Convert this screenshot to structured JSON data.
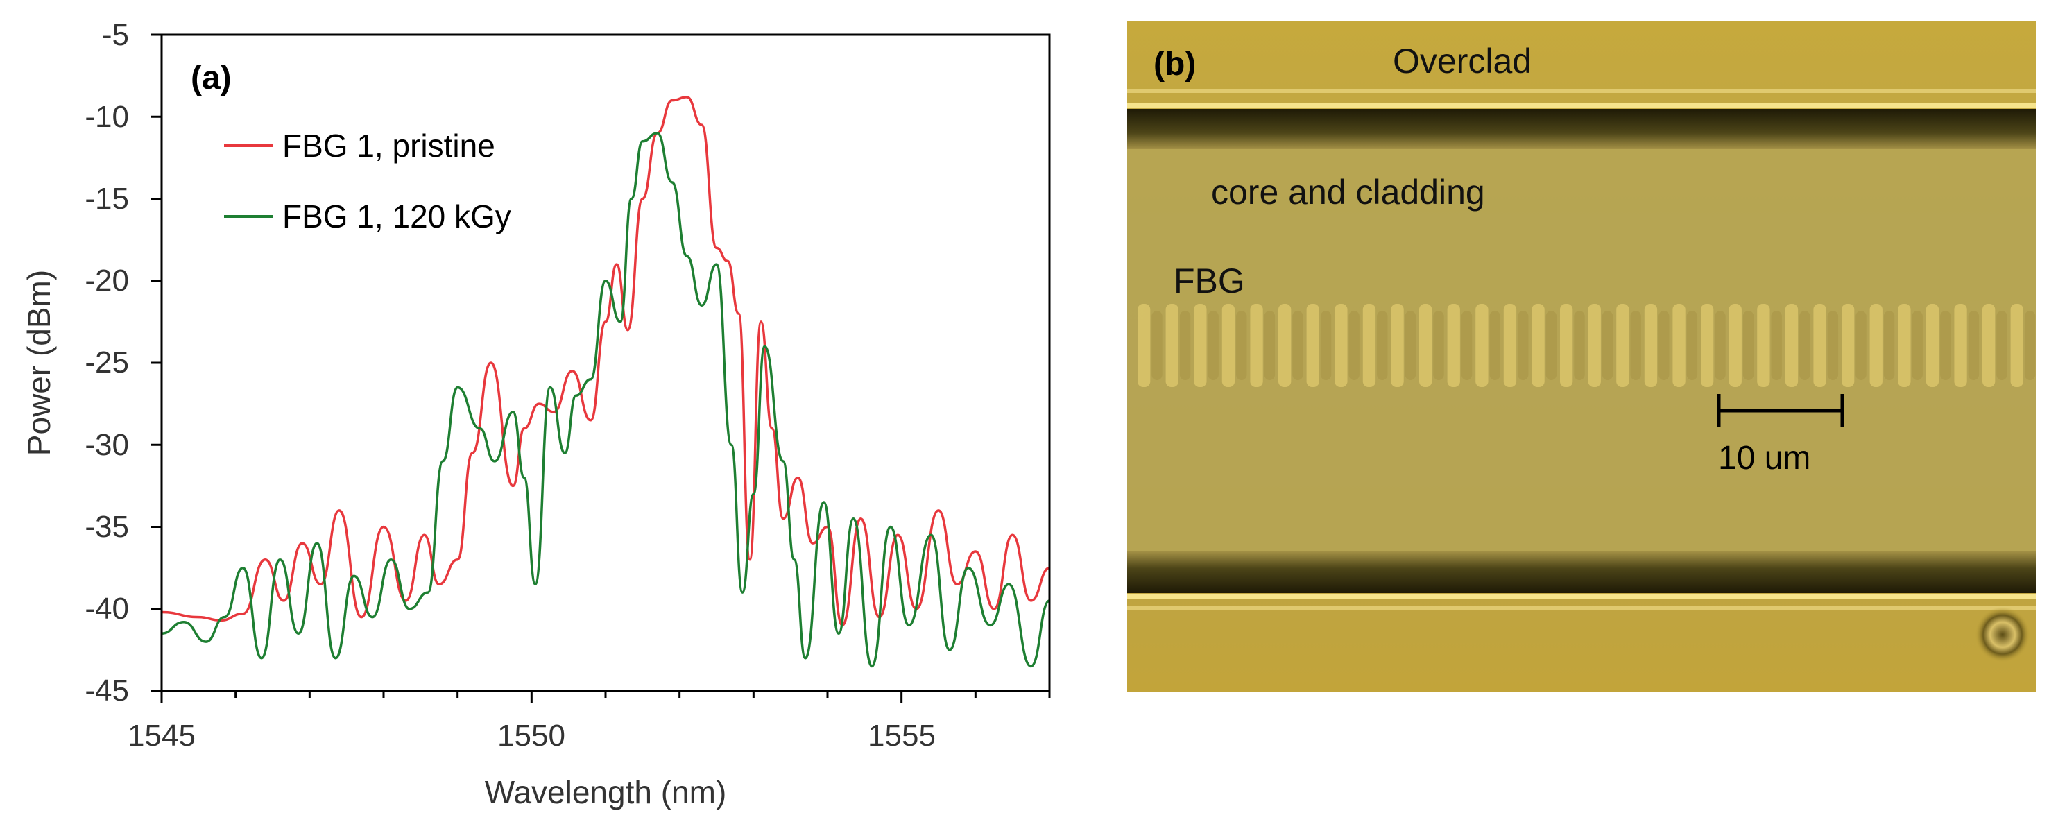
{
  "chart_data": {
    "type": "line",
    "panel_label": "(a)",
    "xlabel": "Wavelength (nm)",
    "ylabel": "Power (dBm)",
    "xlim": [
      1545,
      1557
    ],
    "ylim": [
      -45,
      -5
    ],
    "xticks": [
      1545,
      1550,
      1555
    ],
    "yticks": [
      -5,
      -10,
      -15,
      -20,
      -25,
      -30,
      -35,
      -40,
      -45
    ],
    "xtick_labels": [
      "1545",
      "1550",
      "1555"
    ],
    "ytick_labels": [
      "-5",
      "-10",
      "-15",
      "-20",
      "-25",
      "-30",
      "-35",
      "-40",
      "-45"
    ],
    "legend_position": "top-left",
    "series": [
      {
        "name": "FBG 1, pristine",
        "color": "#e8383d",
        "x": [
          1545.0,
          1545.5,
          1545.8,
          1546.1,
          1546.4,
          1546.65,
          1546.9,
          1547.15,
          1547.4,
          1547.7,
          1548.0,
          1548.3,
          1548.55,
          1548.75,
          1549.0,
          1549.2,
          1549.45,
          1549.75,
          1549.9,
          1550.1,
          1550.3,
          1550.55,
          1550.8,
          1551.0,
          1551.15,
          1551.3,
          1551.5,
          1551.7,
          1551.9,
          1552.1,
          1552.3,
          1552.5,
          1552.65,
          1552.8,
          1552.95,
          1553.1,
          1553.25,
          1553.4,
          1553.6,
          1553.8,
          1554.0,
          1554.2,
          1554.45,
          1554.7,
          1554.95,
          1555.2,
          1555.5,
          1555.75,
          1556.0,
          1556.25,
          1556.5,
          1556.75,
          1557.0
        ],
        "values": [
          -40.2,
          -40.5,
          -40.7,
          -40.3,
          -37.0,
          -39.5,
          -36.0,
          -38.5,
          -34.0,
          -40.5,
          -35.0,
          -39.5,
          -35.5,
          -38.5,
          -37.0,
          -30.5,
          -25.0,
          -32.5,
          -29.0,
          -27.5,
          -28.0,
          -25.5,
          -28.5,
          -22.5,
          -19.0,
          -23.0,
          -15.0,
          -11.0,
          -9.0,
          -8.8,
          -10.5,
          -18.0,
          -18.8,
          -22.0,
          -37.0,
          -22.5,
          -29.0,
          -34.5,
          -32.0,
          -36.0,
          -35.0,
          -41.0,
          -34.5,
          -40.5,
          -35.5,
          -40.0,
          -34.0,
          -38.5,
          -36.5,
          -40.0,
          -35.5,
          -39.5,
          -37.5
        ]
      },
      {
        "name": "FBG 1, 120 kGy",
        "color": "#1e7f32",
        "x": [
          1545.0,
          1545.3,
          1545.6,
          1545.85,
          1546.1,
          1546.35,
          1546.6,
          1546.85,
          1547.1,
          1547.35,
          1547.6,
          1547.85,
          1548.1,
          1548.35,
          1548.6,
          1548.8,
          1549.0,
          1549.3,
          1549.5,
          1549.75,
          1549.9,
          1550.05,
          1550.25,
          1550.45,
          1550.6,
          1550.8,
          1551.0,
          1551.2,
          1551.35,
          1551.5,
          1551.7,
          1551.9,
          1552.1,
          1552.3,
          1552.5,
          1552.7,
          1552.85,
          1553.0,
          1553.15,
          1553.4,
          1553.55,
          1553.7,
          1553.95,
          1554.15,
          1554.35,
          1554.6,
          1554.85,
          1555.1,
          1555.4,
          1555.65,
          1555.9,
          1556.2,
          1556.45,
          1556.75,
          1557.0
        ],
        "values": [
          -41.5,
          -40.8,
          -42.0,
          -40.5,
          -37.5,
          -43.0,
          -37.0,
          -41.5,
          -36.0,
          -43.0,
          -38.0,
          -40.5,
          -37.0,
          -40.0,
          -39.0,
          -31.0,
          -26.5,
          -29.0,
          -31.0,
          -28.0,
          -32.0,
          -38.5,
          -26.5,
          -30.5,
          -27.0,
          -26.0,
          -20.0,
          -22.5,
          -15.0,
          -11.5,
          -11.0,
          -14.0,
          -18.5,
          -21.5,
          -19.0,
          -30.0,
          -39.0,
          -33.0,
          -24.0,
          -31.0,
          -37.0,
          -43.0,
          -33.5,
          -41.5,
          -34.5,
          -43.5,
          -35.0,
          -41.0,
          -35.5,
          -42.5,
          -37.5,
          -41.0,
          -38.5,
          -43.5,
          -39.5
        ]
      }
    ]
  },
  "photo": {
    "panel_label": "(b)",
    "labels": {
      "overclad": "Overclad",
      "core": "core and cladding",
      "fbg": "FBG"
    },
    "scale_bar_label": "10 um",
    "colors": {
      "background": "#b9a040",
      "core_band": "#b5a455",
      "dark_edge": "#2a2408",
      "bright_line": "#f4df7a",
      "fringe_light": "#e6cf72",
      "fringe_dark": "#a18a3e"
    }
  }
}
